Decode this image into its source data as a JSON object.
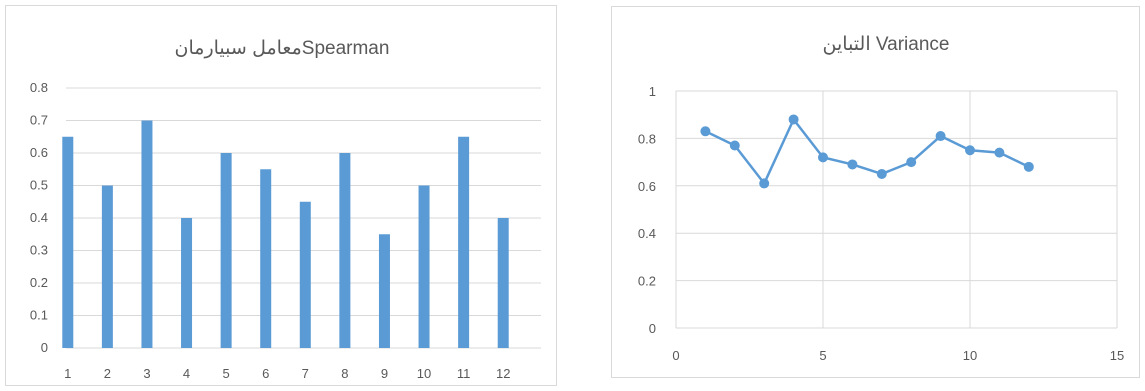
{
  "colors": {
    "series": "#5b9bd5",
    "grid": "#d9d9d9",
    "text": "#595959",
    "border": "#d9d9d9"
  },
  "chart_data": [
    {
      "type": "bar",
      "title": "معامل سبيارمانSpearman",
      "categories": [
        "1",
        "2",
        "3",
        "4",
        "5",
        "6",
        "7",
        "8",
        "9",
        "10",
        "11",
        "12"
      ],
      "values": [
        0.65,
        0.5,
        0.7,
        0.4,
        0.6,
        0.55,
        0.45,
        0.6,
        0.35,
        0.5,
        0.65,
        0.4
      ],
      "ylim": [
        0,
        0.8
      ],
      "yticks": [
        "0",
        "0.1",
        "0.2",
        "0.3",
        "0.4",
        "0.5",
        "0.6",
        "0.7",
        "0.8"
      ],
      "grid": true,
      "legend": "none"
    },
    {
      "type": "scatter",
      "title": "التباين Variance",
      "x": [
        1,
        2,
        3,
        4,
        5,
        6,
        7,
        8,
        9,
        10,
        11,
        12
      ],
      "y": [
        0.83,
        0.77,
        0.61,
        0.88,
        0.72,
        0.69,
        0.65,
        0.7,
        0.81,
        0.75,
        0.74,
        0.68
      ],
      "xlim": [
        0,
        15
      ],
      "ylim": [
        0,
        1
      ],
      "xticks": [
        "0",
        "5",
        "10",
        "15"
      ],
      "yticks": [
        "0",
        "0.2",
        "0.4",
        "0.6",
        "0.8",
        "1"
      ],
      "lines": true,
      "grid": true,
      "legend": "none"
    }
  ]
}
